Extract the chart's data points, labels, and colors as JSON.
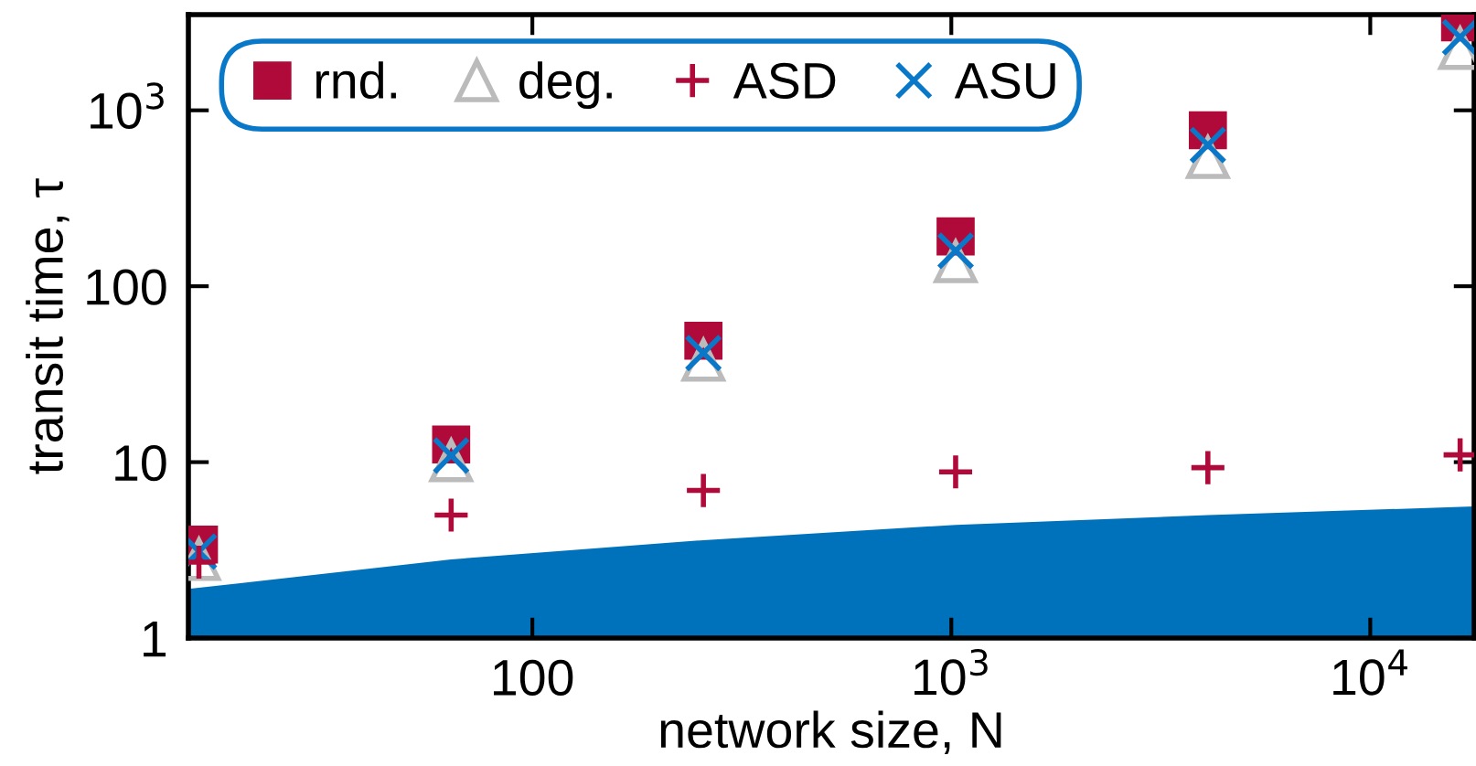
{
  "chart_data": {
    "type": "scatter",
    "xlabel": "network size, N",
    "ylabel": "transit time, τ",
    "x": [
      16,
      64,
      256,
      1024,
      4096,
      16384
    ],
    "series": [
      {
        "type": "area",
        "color": "#0072bc",
        "x": [
          15.1,
          64,
          256,
          1024,
          4096,
          17700
        ],
        "values": [
          1.9,
          2.8,
          3.6,
          4.4,
          5.0,
          5.6
        ]
      },
      {
        "name": "rnd.",
        "color": "#b00a3a",
        "marker": "square",
        "values": [
          3.4,
          12.6,
          49,
          192,
          770,
          3160
        ]
      },
      {
        "name": "deg.",
        "color": "#bbbbbb",
        "marker": "triangle",
        "values": [
          2.8,
          10.2,
          38,
          138,
          540,
          2250
        ]
      },
      {
        "name": "ASD",
        "color": "#b00a3a",
        "marker": "plus",
        "values": [
          2.7,
          5.0,
          6.9,
          8.8,
          9.3,
          11
        ]
      },
      {
        "name": "ASU",
        "color": "#0a78c8",
        "marker": "cross",
        "values": [
          3.1,
          10.9,
          41.7,
          159,
          635,
          2600
        ]
      }
    ],
    "log": "xy",
    "xlim": [
      15.1,
      17700
    ],
    "ylim": [
      1,
      3500
    ],
    "xticks": [
      100,
      {
        "value": 1000,
        "label": "10$^{3}$"
      },
      {
        "value": 10000,
        "label": "10$^{4}$"
      }
    ],
    "yticks": [
      1,
      10,
      100,
      {
        "value": 1000,
        "label": "10$^{3}$"
      }
    ],
    "legend": "top left",
    "grid": false
  }
}
